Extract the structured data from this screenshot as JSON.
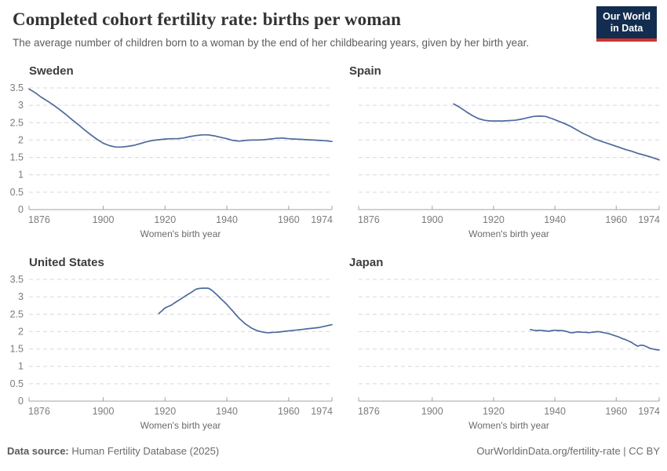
{
  "header": {
    "title": "Completed cohort fertility rate: births per woman",
    "subtitle": "The average number of children born to a woman by the end of her childbearing years, given by her birth year.",
    "logo": {
      "line1": "Our World",
      "line2": "in Data"
    }
  },
  "colors": {
    "line": "#4c6a9c",
    "grid": "#d9d9d9",
    "axis": "#a3a3a3",
    "tick_label": "#7c7c7c",
    "axis_label": "#6b6b6b",
    "logo_bg": "#122d50",
    "logo_stripe": "#d0342c"
  },
  "axes": {
    "xlabel": "Women's birth year",
    "xlim": [
      1876,
      1974
    ],
    "ylim": [
      0,
      3.5
    ],
    "xticks": [
      1876,
      1900,
      1920,
      1940,
      1960,
      1974
    ],
    "yticks": [
      0,
      0.5,
      1,
      1.5,
      2,
      2.5,
      3,
      3.5
    ],
    "grid": "horizontal-dashed",
    "legend": "none"
  },
  "chart_data": [
    {
      "type": "line",
      "title": "Sweden",
      "show_y_labels": true,
      "x": [
        1876,
        1878,
        1880,
        1882,
        1884,
        1886,
        1888,
        1890,
        1892,
        1894,
        1896,
        1898,
        1900,
        1902,
        1904,
        1906,
        1908,
        1910,
        1912,
        1914,
        1916,
        1918,
        1920,
        1922,
        1924,
        1926,
        1928,
        1930,
        1932,
        1934,
        1936,
        1938,
        1940,
        1942,
        1944,
        1946,
        1948,
        1950,
        1952,
        1954,
        1956,
        1958,
        1960,
        1962,
        1964,
        1966,
        1968,
        1970,
        1972,
        1974
      ],
      "y": [
        3.47,
        3.36,
        3.23,
        3.12,
        3.0,
        2.87,
        2.73,
        2.58,
        2.44,
        2.29,
        2.15,
        2.02,
        1.91,
        1.84,
        1.8,
        1.8,
        1.82,
        1.85,
        1.9,
        1.95,
        1.99,
        2.01,
        2.03,
        2.04,
        2.04,
        2.06,
        2.1,
        2.13,
        2.15,
        2.15,
        2.12,
        2.08,
        2.04,
        1.99,
        1.97,
        1.99,
        2.0,
        2.0,
        2.01,
        2.03,
        2.05,
        2.06,
        2.04,
        2.03,
        2.02,
        2.01,
        2.0,
        1.99,
        1.98,
        1.96
      ]
    },
    {
      "type": "line",
      "title": "Spain",
      "show_y_labels": false,
      "x": [
        1907,
        1909,
        1911,
        1913,
        1915,
        1917,
        1919,
        1921,
        1923,
        1925,
        1927,
        1929,
        1931,
        1933,
        1935,
        1937,
        1939,
        1941,
        1943,
        1945,
        1947,
        1949,
        1951,
        1953,
        1955,
        1957,
        1959,
        1961,
        1963,
        1965,
        1967,
        1969,
        1971,
        1973,
        1974
      ],
      "y": [
        3.04,
        2.94,
        2.82,
        2.71,
        2.62,
        2.57,
        2.55,
        2.55,
        2.55,
        2.56,
        2.57,
        2.6,
        2.64,
        2.68,
        2.69,
        2.68,
        2.62,
        2.55,
        2.48,
        2.4,
        2.3,
        2.2,
        2.12,
        2.03,
        1.97,
        1.91,
        1.85,
        1.79,
        1.73,
        1.68,
        1.62,
        1.57,
        1.52,
        1.46,
        1.43
      ]
    },
    {
      "type": "line",
      "title": "United States",
      "show_y_labels": true,
      "x": [
        1918,
        1919,
        1920,
        1921,
        1922,
        1923,
        1924,
        1925,
        1926,
        1927,
        1928,
        1929,
        1930,
        1931,
        1932,
        1933,
        1934,
        1935,
        1936,
        1937,
        1938,
        1939,
        1940,
        1941,
        1942,
        1943,
        1944,
        1945,
        1946,
        1947,
        1948,
        1949,
        1950,
        1951,
        1952,
        1953,
        1954,
        1955,
        1956,
        1957,
        1958,
        1960,
        1962,
        1964,
        1966,
        1968,
        1970,
        1972,
        1974
      ],
      "y": [
        2.52,
        2.6,
        2.68,
        2.72,
        2.76,
        2.82,
        2.88,
        2.93,
        2.99,
        3.05,
        3.1,
        3.16,
        3.22,
        3.24,
        3.25,
        3.25,
        3.25,
        3.2,
        3.12,
        3.04,
        2.95,
        2.87,
        2.78,
        2.68,
        2.58,
        2.48,
        2.38,
        2.3,
        2.22,
        2.16,
        2.1,
        2.06,
        2.02,
        2.0,
        1.98,
        1.97,
        1.97,
        1.98,
        1.98,
        1.99,
        2.0,
        2.02,
        2.04,
        2.06,
        2.08,
        2.1,
        2.12,
        2.16,
        2.2
      ]
    },
    {
      "type": "line",
      "title": "Japan",
      "show_y_labels": false,
      "x": [
        1932,
        1933,
        1934,
        1935,
        1936,
        1937,
        1938,
        1939,
        1940,
        1941,
        1942,
        1943,
        1944,
        1945,
        1946,
        1947,
        1948,
        1949,
        1950,
        1951,
        1952,
        1953,
        1954,
        1955,
        1956,
        1957,
        1958,
        1959,
        1960,
        1961,
        1962,
        1963,
        1964,
        1965,
        1966,
        1967,
        1968,
        1969,
        1970,
        1971,
        1972,
        1973,
        1974
      ],
      "y": [
        2.06,
        2.04,
        2.03,
        2.04,
        2.03,
        2.02,
        2.01,
        2.03,
        2.04,
        2.03,
        2.03,
        2.02,
        2.0,
        1.97,
        1.97,
        1.99,
        1.99,
        1.98,
        1.98,
        1.97,
        1.98,
        1.99,
        2.0,
        1.99,
        1.97,
        1.95,
        1.93,
        1.9,
        1.87,
        1.84,
        1.8,
        1.77,
        1.73,
        1.69,
        1.63,
        1.58,
        1.61,
        1.6,
        1.56,
        1.52,
        1.5,
        1.48,
        1.47
      ]
    }
  ],
  "footer": {
    "source_label": "Data source:",
    "source_text": " Human Fertility Database (2025)",
    "right_text": "OurWorldinData.org/fertility-rate | CC BY"
  }
}
